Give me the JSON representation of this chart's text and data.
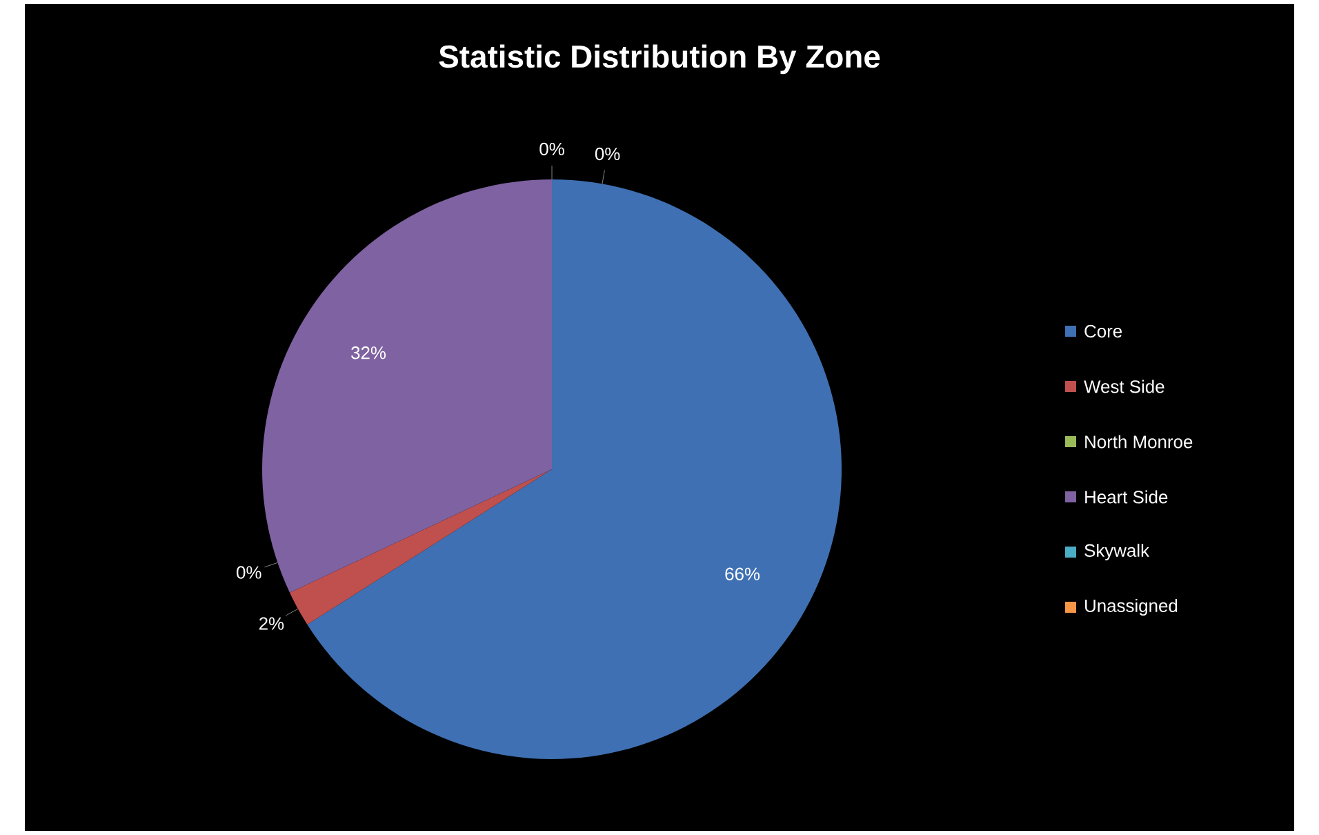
{
  "chart_data": {
    "type": "pie",
    "title": "Statistic Distribution By Zone",
    "categories": [
      "Core",
      "West Side",
      "North Monroe",
      "Heart Side",
      "Skywalk",
      "Unassigned"
    ],
    "values": [
      66,
      2,
      0,
      32,
      0,
      0
    ],
    "value_labels": [
      "66%",
      "2%",
      "0%",
      "32%",
      "0%",
      "0%"
    ],
    "colors": [
      "#3f70b3",
      "#c0504d",
      "#9bbb59",
      "#7f62a1",
      "#4bacc6",
      "#f79646"
    ],
    "legend": "right"
  }
}
